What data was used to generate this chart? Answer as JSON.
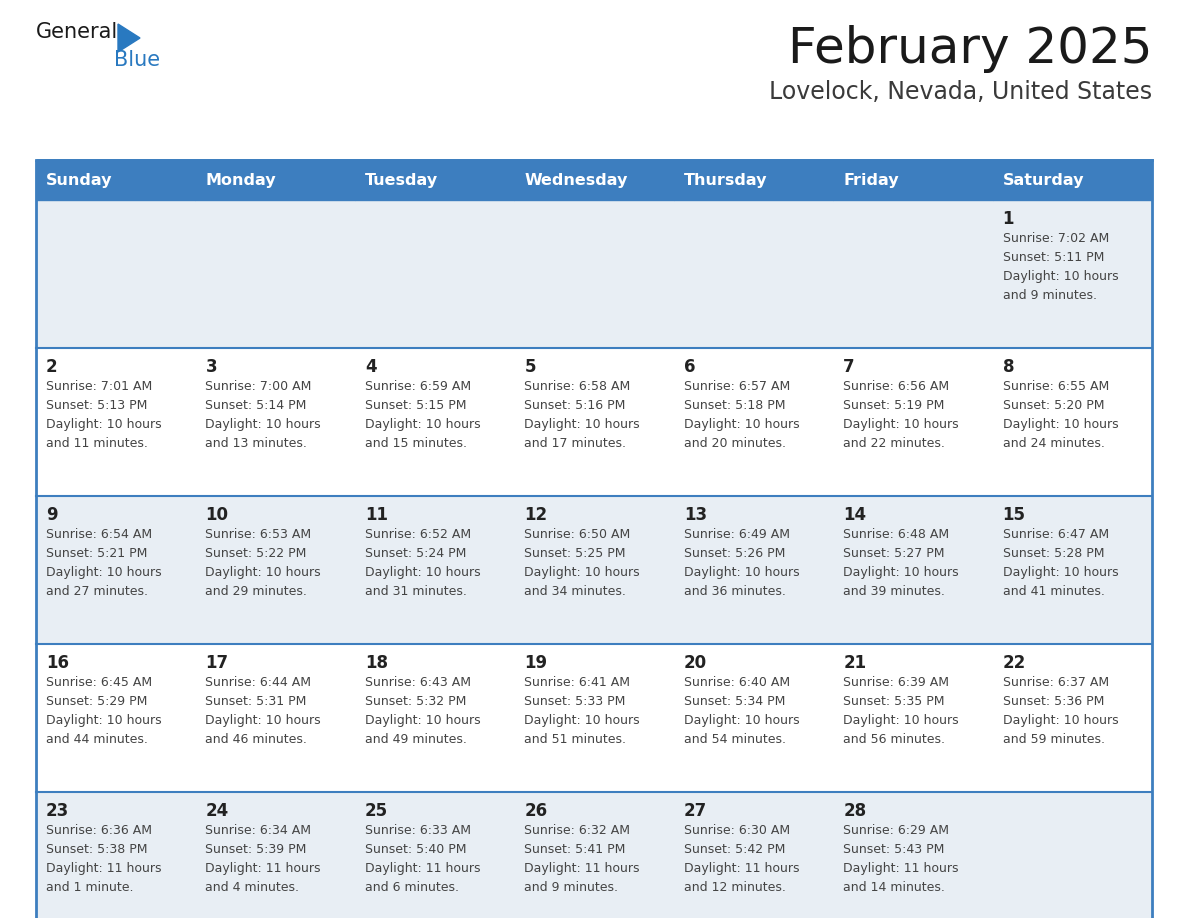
{
  "title": "February 2025",
  "subtitle": "Lovelock, Nevada, United States",
  "header_bg": "#3d7ebf",
  "header_text_color": "#ffffff",
  "row_bg_1": "#e8eef4",
  "row_bg_2": "#ffffff",
  "border_color": "#3d7ebf",
  "day_names": [
    "Sunday",
    "Monday",
    "Tuesday",
    "Wednesday",
    "Thursday",
    "Friday",
    "Saturday"
  ],
  "title_color": "#1a1a1a",
  "subtitle_color": "#3a3a3a",
  "day_number_color": "#222222",
  "cell_text_color": "#444444",
  "calendar": [
    [
      null,
      null,
      null,
      null,
      null,
      null,
      {
        "day": 1,
        "sunrise": "Sunrise: 7:02 AM",
        "sunset": "Sunset: 5:11 PM",
        "daylight": "Daylight: 10 hours\nand 9 minutes."
      }
    ],
    [
      {
        "day": 2,
        "sunrise": "Sunrise: 7:01 AM",
        "sunset": "Sunset: 5:13 PM",
        "daylight": "Daylight: 10 hours\nand 11 minutes."
      },
      {
        "day": 3,
        "sunrise": "Sunrise: 7:00 AM",
        "sunset": "Sunset: 5:14 PM",
        "daylight": "Daylight: 10 hours\nand 13 minutes."
      },
      {
        "day": 4,
        "sunrise": "Sunrise: 6:59 AM",
        "sunset": "Sunset: 5:15 PM",
        "daylight": "Daylight: 10 hours\nand 15 minutes."
      },
      {
        "day": 5,
        "sunrise": "Sunrise: 6:58 AM",
        "sunset": "Sunset: 5:16 PM",
        "daylight": "Daylight: 10 hours\nand 17 minutes."
      },
      {
        "day": 6,
        "sunrise": "Sunrise: 6:57 AM",
        "sunset": "Sunset: 5:18 PM",
        "daylight": "Daylight: 10 hours\nand 20 minutes."
      },
      {
        "day": 7,
        "sunrise": "Sunrise: 6:56 AM",
        "sunset": "Sunset: 5:19 PM",
        "daylight": "Daylight: 10 hours\nand 22 minutes."
      },
      {
        "day": 8,
        "sunrise": "Sunrise: 6:55 AM",
        "sunset": "Sunset: 5:20 PM",
        "daylight": "Daylight: 10 hours\nand 24 minutes."
      }
    ],
    [
      {
        "day": 9,
        "sunrise": "Sunrise: 6:54 AM",
        "sunset": "Sunset: 5:21 PM",
        "daylight": "Daylight: 10 hours\nand 27 minutes."
      },
      {
        "day": 10,
        "sunrise": "Sunrise: 6:53 AM",
        "sunset": "Sunset: 5:22 PM",
        "daylight": "Daylight: 10 hours\nand 29 minutes."
      },
      {
        "day": 11,
        "sunrise": "Sunrise: 6:52 AM",
        "sunset": "Sunset: 5:24 PM",
        "daylight": "Daylight: 10 hours\nand 31 minutes."
      },
      {
        "day": 12,
        "sunrise": "Sunrise: 6:50 AM",
        "sunset": "Sunset: 5:25 PM",
        "daylight": "Daylight: 10 hours\nand 34 minutes."
      },
      {
        "day": 13,
        "sunrise": "Sunrise: 6:49 AM",
        "sunset": "Sunset: 5:26 PM",
        "daylight": "Daylight: 10 hours\nand 36 minutes."
      },
      {
        "day": 14,
        "sunrise": "Sunrise: 6:48 AM",
        "sunset": "Sunset: 5:27 PM",
        "daylight": "Daylight: 10 hours\nand 39 minutes."
      },
      {
        "day": 15,
        "sunrise": "Sunrise: 6:47 AM",
        "sunset": "Sunset: 5:28 PM",
        "daylight": "Daylight: 10 hours\nand 41 minutes."
      }
    ],
    [
      {
        "day": 16,
        "sunrise": "Sunrise: 6:45 AM",
        "sunset": "Sunset: 5:29 PM",
        "daylight": "Daylight: 10 hours\nand 44 minutes."
      },
      {
        "day": 17,
        "sunrise": "Sunrise: 6:44 AM",
        "sunset": "Sunset: 5:31 PM",
        "daylight": "Daylight: 10 hours\nand 46 minutes."
      },
      {
        "day": 18,
        "sunrise": "Sunrise: 6:43 AM",
        "sunset": "Sunset: 5:32 PM",
        "daylight": "Daylight: 10 hours\nand 49 minutes."
      },
      {
        "day": 19,
        "sunrise": "Sunrise: 6:41 AM",
        "sunset": "Sunset: 5:33 PM",
        "daylight": "Daylight: 10 hours\nand 51 minutes."
      },
      {
        "day": 20,
        "sunrise": "Sunrise: 6:40 AM",
        "sunset": "Sunset: 5:34 PM",
        "daylight": "Daylight: 10 hours\nand 54 minutes."
      },
      {
        "day": 21,
        "sunrise": "Sunrise: 6:39 AM",
        "sunset": "Sunset: 5:35 PM",
        "daylight": "Daylight: 10 hours\nand 56 minutes."
      },
      {
        "day": 22,
        "sunrise": "Sunrise: 6:37 AM",
        "sunset": "Sunset: 5:36 PM",
        "daylight": "Daylight: 10 hours\nand 59 minutes."
      }
    ],
    [
      {
        "day": 23,
        "sunrise": "Sunrise: 6:36 AM",
        "sunset": "Sunset: 5:38 PM",
        "daylight": "Daylight: 11 hours\nand 1 minute."
      },
      {
        "day": 24,
        "sunrise": "Sunrise: 6:34 AM",
        "sunset": "Sunset: 5:39 PM",
        "daylight": "Daylight: 11 hours\nand 4 minutes."
      },
      {
        "day": 25,
        "sunrise": "Sunrise: 6:33 AM",
        "sunset": "Sunset: 5:40 PM",
        "daylight": "Daylight: 11 hours\nand 6 minutes."
      },
      {
        "day": 26,
        "sunrise": "Sunrise: 6:32 AM",
        "sunset": "Sunset: 5:41 PM",
        "daylight": "Daylight: 11 hours\nand 9 minutes."
      },
      {
        "day": 27,
        "sunrise": "Sunrise: 6:30 AM",
        "sunset": "Sunset: 5:42 PM",
        "daylight": "Daylight: 11 hours\nand 12 minutes."
      },
      {
        "day": 28,
        "sunrise": "Sunrise: 6:29 AM",
        "sunset": "Sunset: 5:43 PM",
        "daylight": "Daylight: 11 hours\nand 14 minutes."
      },
      null
    ]
  ],
  "logo_general_color": "#1a1a1a",
  "logo_blue_color": "#2979c0",
  "logo_triangle_color": "#2979c0",
  "fig_width": 11.88,
  "fig_height": 9.18,
  "dpi": 100
}
